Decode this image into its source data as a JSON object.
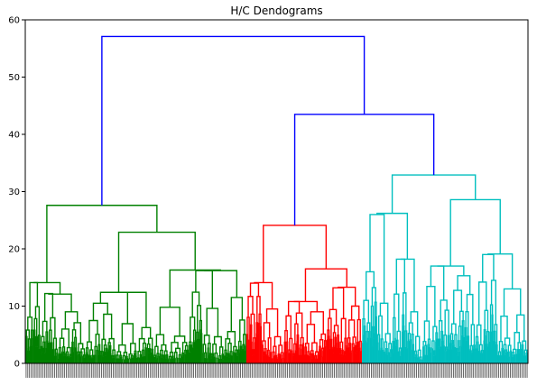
{
  "chart_data": {
    "type": "dendrogram",
    "title": "H/C Dendograms",
    "xlabel": "",
    "ylabel": "",
    "ylim": [
      0,
      60
    ],
    "yticks": [
      0,
      10,
      20,
      30,
      40,
      50,
      60
    ],
    "grid": false,
    "legend": "none",
    "colors": {
      "above_threshold": "#0000ff",
      "cluster_1": "#008000",
      "cluster_2": "#ff0000",
      "cluster_3": "#00bfbf"
    },
    "merge_heights": {
      "root": 57.1,
      "red_cyan": 43.5,
      "green": 27.6,
      "red": 24.1,
      "cyan": 32.9
    },
    "clusters": [
      {
        "color": "green",
        "leaf_share": 0.44
      },
      {
        "color": "red",
        "leaf_share": 0.23
      },
      {
        "color": "cyan",
        "leaf_share": 0.33
      }
    ]
  }
}
